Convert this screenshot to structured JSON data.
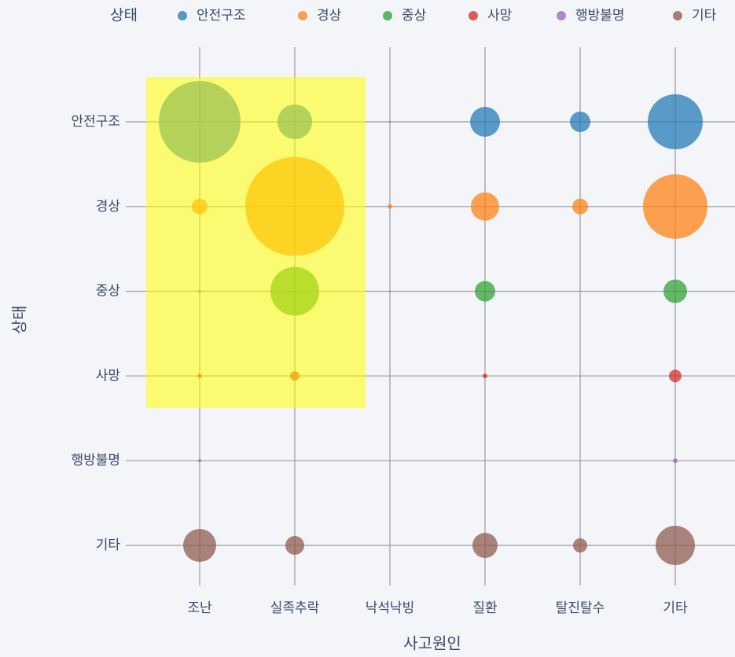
{
  "chart_data": {
    "type": "bubble",
    "legend_title": "상태",
    "x_label": "사고원인",
    "y_label": "상태",
    "categories": [
      "조난",
      "실족추락",
      "낙석낙빙",
      "질환",
      "탈진탈수",
      "기타"
    ],
    "series": [
      {
        "name": "안전구조",
        "color": "#1f77b4",
        "values": [
          2704,
          484,
          1,
          361,
          169,
          1225
        ]
      },
      {
        "name": "경상",
        "color": "#ff7f0e",
        "values": [
          100,
          3969,
          9,
          324,
          100,
          1681
        ]
      },
      {
        "name": "중상",
        "color": "#2ca02c",
        "values": [
          4,
          961,
          1,
          169,
          0,
          225
        ]
      },
      {
        "name": "사망",
        "color": "#d62728",
        "values": [
          9,
          36,
          0,
          9,
          0,
          64
        ]
      },
      {
        "name": "행방불명",
        "color": "#9467bd",
        "values": [
          4,
          0,
          0,
          0,
          0,
          9
        ]
      },
      {
        "name": "기타",
        "color": "#8c564b",
        "values": [
          441,
          144,
          0,
          256,
          81,
          625
        ]
      }
    ],
    "grid": true
  }
}
